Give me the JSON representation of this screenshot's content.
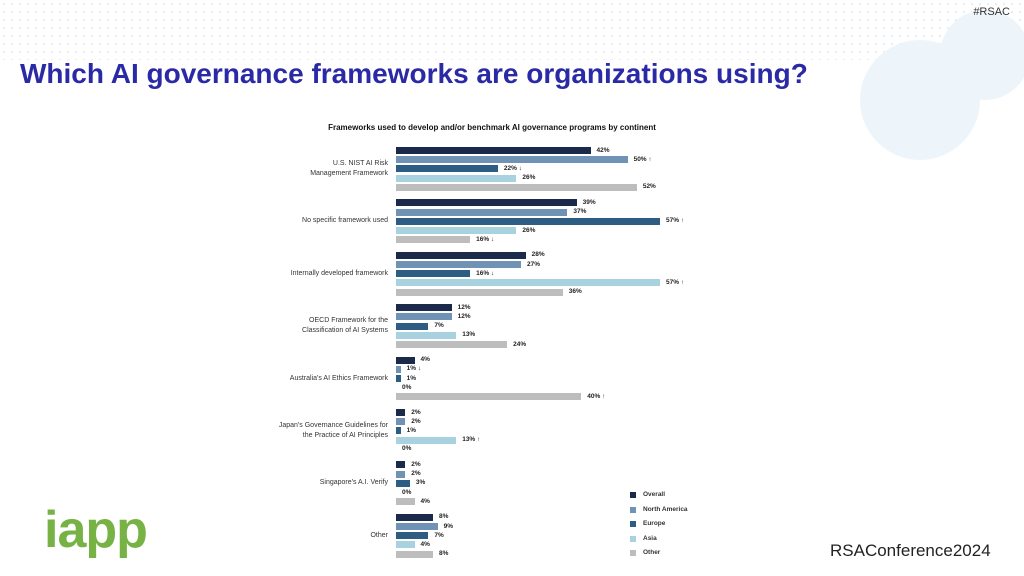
{
  "slide": {
    "hashtag": "#RSAC",
    "title": "Which AI governance frameworks are organizations using?",
    "logo": "iapp",
    "conference": "RSAConference2024"
  },
  "chart_data": {
    "type": "hbar",
    "title": "Frameworks used to develop and/or benchmark AI governance programs by continent",
    "categories": [
      "U.S. NIST AI Risk\nManagement Framework",
      "No specific framework used",
      "Internally developed framework",
      "OECD Framework for the\nClassification of AI Systems",
      "Australia's AI Ethics Framework",
      "Japan's Governance Guidelines for\nthe Practice of AI Principles",
      "Singapore's A.I. Verify",
      "Other"
    ],
    "series": [
      {
        "name": "Overall",
        "color": "#1b2a4a",
        "values": [
          42,
          39,
          28,
          12,
          4,
          2,
          2,
          8
        ],
        "value_labels": [
          "42%",
          "39%",
          "28%",
          "12%",
          "4%",
          "2%",
          "2%",
          "8%"
        ]
      },
      {
        "name": "North America",
        "color": "#7093b5",
        "values": [
          50,
          37,
          27,
          12,
          1,
          2,
          2,
          9
        ],
        "value_labels": [
          "50% ↑",
          "37%",
          "27%",
          "12%",
          "1% ↓",
          "2%",
          "2%",
          "9%"
        ]
      },
      {
        "name": "Europe",
        "color": "#2e5d84",
        "values": [
          22,
          57,
          16,
          7,
          1,
          1,
          3,
          7
        ],
        "value_labels": [
          "22% ↓",
          "57% ↑",
          "16% ↓",
          "7%",
          "1%",
          "1%",
          "3%",
          "7%"
        ]
      },
      {
        "name": "Asia",
        "color": "#a8d2e0",
        "values": [
          26,
          26,
          57,
          13,
          0,
          13,
          0,
          4
        ],
        "value_labels": [
          "26%",
          "26%",
          "57% ↑",
          "13%",
          "0%",
          "13% ↑",
          "0%",
          "4%"
        ]
      },
      {
        "name": "Other",
        "color": "#bdbdbd",
        "values": [
          52,
          16,
          36,
          24,
          40,
          0,
          4,
          8
        ],
        "value_labels": [
          "52%",
          "16% ↓",
          "36%",
          "24%",
          "40% ↑",
          "0%",
          "4%",
          "8%"
        ]
      }
    ],
    "legend": "bottom-right"
  }
}
